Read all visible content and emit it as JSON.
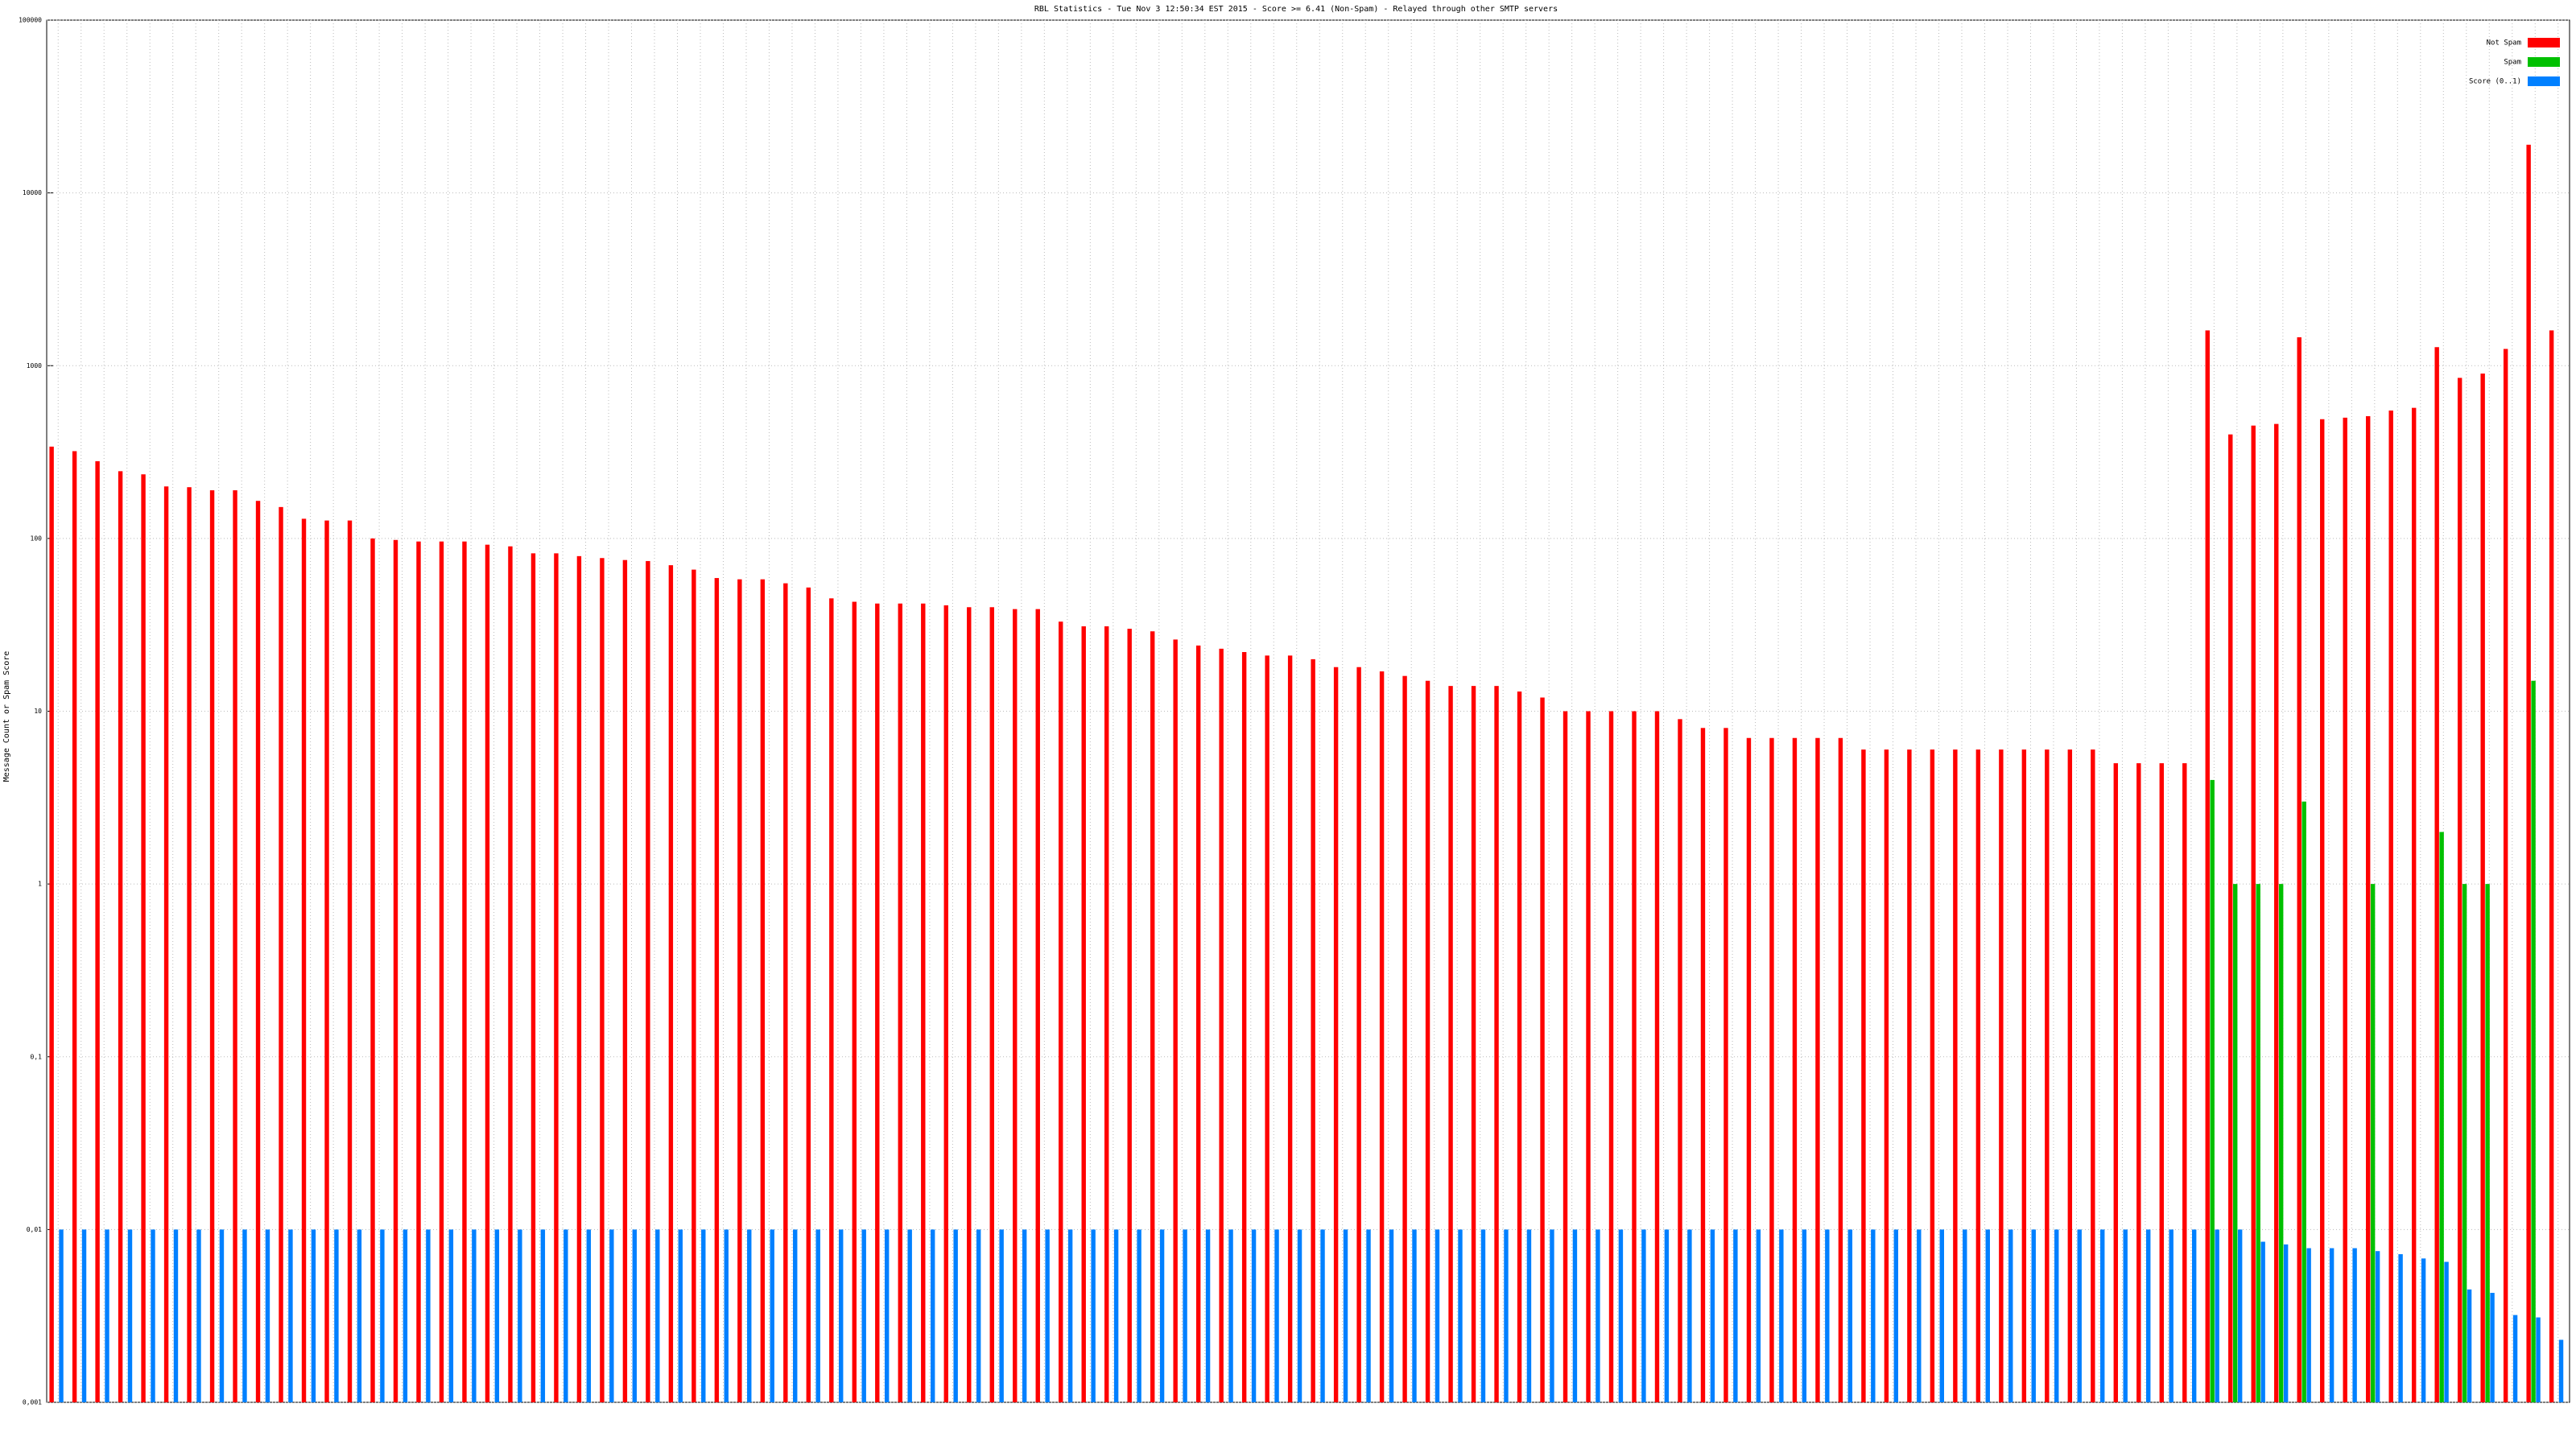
{
  "chart_data": {
    "type": "bar",
    "title": "RBL Statistics - Tue Nov  3 12:50:34 EST 2015 - Score >= 6.41 (Non-Spam) - Relayed through other SMTP servers",
    "y_label": "Message Count or Spam Score",
    "y_log": true,
    "grid": true,
    "legend": "top-right",
    "ylim": [
      0.001,
      100000
    ],
    "yticks": [
      {
        "value": 0.001,
        "label": "0,001"
      },
      {
        "value": 0.01,
        "label": "0,01"
      },
      {
        "value": 0.1,
        "label": "0,1"
      },
      1,
      10,
      100,
      1000,
      10000,
      100000
    ],
    "categories": [
      null,
      null,
      null,
      null,
      null,
      null,
      null,
      null,
      null,
      null,
      null,
      null,
      null,
      null,
      null,
      null,
      null,
      null,
      null,
      null,
      null,
      null,
      null,
      null,
      null,
      null,
      null,
      null,
      null,
      null,
      null,
      null,
      null,
      null,
      null,
      null,
      null,
      null,
      null,
      null,
      null,
      null,
      null,
      null,
      null,
      null,
      null,
      null,
      null,
      null,
      null,
      null,
      null,
      null,
      null,
      null,
      null,
      null,
      null,
      null,
      null,
      null,
      null,
      null,
      null,
      null,
      null,
      null,
      null,
      null,
      null,
      null,
      null,
      null,
      null,
      null,
      null,
      null,
      null,
      null,
      null,
      null,
      null,
      null,
      null,
      null,
      null,
      null,
      null,
      null,
      null,
      null,
      null,
      null,
      null,
      null,
      null,
      null,
      null,
      null,
      null,
      null,
      null,
      null,
      null,
      null,
      null,
      null,
      null,
      null
    ],
    "series": [
      {
        "name": "Not Spam",
        "color": "#ff0000",
        "values": [
          340,
          320,
          280,
          245,
          235,
          200,
          198,
          190,
          190,
          165,
          152,
          130,
          127,
          127,
          100,
          98,
          96,
          96,
          96,
          92,
          90,
          82,
          82,
          79,
          77,
          75,
          74,
          70,
          66,
          59,
          58,
          58,
          55,
          52,
          45,
          43,
          42,
          42,
          42,
          41,
          40,
          40,
          39,
          39,
          33,
          31,
          31,
          30,
          29,
          26,
          24,
          23,
          22,
          21,
          21,
          20,
          18,
          18,
          17,
          16,
          15,
          14,
          14,
          14,
          13,
          12,
          10,
          10,
          10,
          10,
          10,
          9,
          8,
          8,
          7,
          7,
          7,
          7,
          7,
          6,
          6,
          6,
          6,
          6,
          6,
          6,
          6,
          6,
          6,
          6,
          5,
          5,
          5,
          5,
          1600,
          400,
          450,
          460,
          1460,
          490,
          500,
          510,
          550,
          570,
          1280,
          850,
          900,
          1250,
          19000,
          1600
        ]
      },
      {
        "name": "Spam",
        "color": "#00c000",
        "values": [
          null,
          null,
          null,
          null,
          null,
          null,
          null,
          null,
          null,
          null,
          null,
          null,
          null,
          null,
          null,
          null,
          null,
          null,
          null,
          null,
          null,
          null,
          null,
          null,
          null,
          null,
          null,
          null,
          null,
          null,
          null,
          null,
          null,
          null,
          null,
          null,
          null,
          null,
          null,
          null,
          null,
          null,
          null,
          null,
          null,
          null,
          null,
          null,
          null,
          null,
          null,
          null,
          null,
          null,
          null,
          null,
          null,
          null,
          null,
          null,
          null,
          null,
          null,
          null,
          null,
          null,
          null,
          null,
          null,
          null,
          null,
          null,
          null,
          null,
          null,
          null,
          null,
          null,
          null,
          null,
          null,
          null,
          null,
          null,
          null,
          null,
          null,
          null,
          null,
          null,
          null,
          null,
          null,
          null,
          4,
          1,
          1,
          1,
          3,
          null,
          null,
          1,
          null,
          null,
          2,
          1,
          1,
          null,
          15,
          null
        ]
      },
      {
        "name": "Score (0..1)",
        "color": "#0080ff",
        "values": [
          0.01,
          0.01,
          0.01,
          0.01,
          0.01,
          0.01,
          0.01,
          0.01,
          0.01,
          0.01,
          0.01,
          0.01,
          0.01,
          0.01,
          0.01,
          0.01,
          0.01,
          0.01,
          0.01,
          0.01,
          0.01,
          0.01,
          0.01,
          0.01,
          0.01,
          0.01,
          0.01,
          0.01,
          0.01,
          0.01,
          0.01,
          0.01,
          0.01,
          0.01,
          0.01,
          0.01,
          0.01,
          0.01,
          0.01,
          0.01,
          0.01,
          0.01,
          0.01,
          0.01,
          0.01,
          0.01,
          0.01,
          0.01,
          0.01,
          0.01,
          0.01,
          0.01,
          0.01,
          0.01,
          0.01,
          0.01,
          0.01,
          0.01,
          0.01,
          0.01,
          0.01,
          0.01,
          0.01,
          0.01,
          0.01,
          0.01,
          0.01,
          0.01,
          0.01,
          0.01,
          0.01,
          0.01,
          0.01,
          0.01,
          0.01,
          0.01,
          0.01,
          0.01,
          0.01,
          0.01,
          0.01,
          0.01,
          0.01,
          0.01,
          0.01,
          0.01,
          0.01,
          0.01,
          0.01,
          0.01,
          0.01,
          0.01,
          0.01,
          0.01,
          0.01,
          0.01,
          0.0085,
          0.0082,
          0.0078,
          0.0078,
          0.0078,
          0.0075,
          0.0072,
          0.0068,
          0.0065,
          0.0045,
          0.0043,
          0.0032,
          0.0031,
          0.0023
        ]
      }
    ]
  }
}
